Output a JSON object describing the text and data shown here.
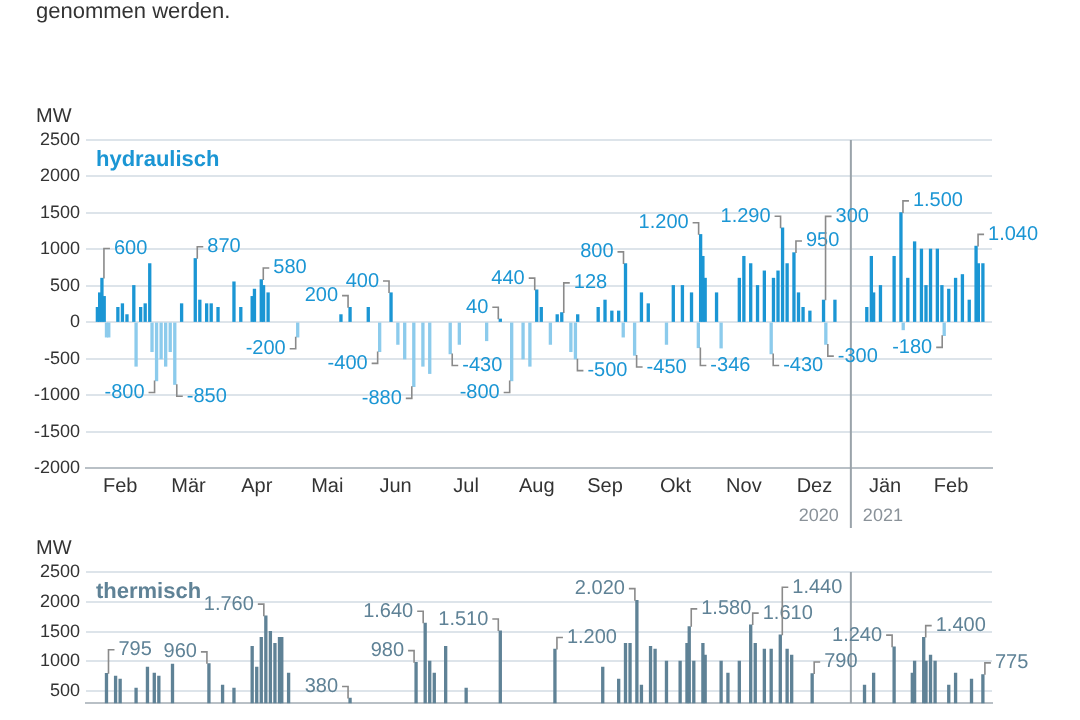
{
  "chart_data": [
    {
      "type": "bar",
      "title": "hydraulisch",
      "ylabel": "MW",
      "grid": "y",
      "annotations": [
        "genommen werden.",
        "2020",
        "2021"
      ],
      "xlim": [
        "2020-01-31",
        "2021-03-04"
      ],
      "xticks": [
        {
          "value": "2020-02-15",
          "label": "Feb"
        },
        {
          "value": "2020-03-16",
          "label": "Mär"
        },
        {
          "value": "2020-04-15",
          "label": "Apr"
        },
        {
          "value": "2020-05-16",
          "label": "Mai"
        },
        {
          "value": "2020-06-15",
          "label": "Jun"
        },
        {
          "value": "2020-07-16",
          "label": "Jul"
        },
        {
          "value": "2020-08-16",
          "label": "Aug"
        },
        {
          "value": "2020-09-15",
          "label": "Sep"
        },
        {
          "value": "2020-10-16",
          "label": "Okt"
        },
        {
          "value": "2020-11-15",
          "label": "Nov"
        },
        {
          "value": "2020-12-16",
          "label": "Dez"
        },
        {
          "value": "2021-01-16",
          "label": "Jän"
        },
        {
          "value": "2021-02-14",
          "label": "Feb"
        }
      ],
      "ylim": [
        -2000,
        2500
      ],
      "yticks": [
        -2000,
        -1500,
        -1000,
        -500,
        0,
        500,
        1000,
        1500,
        2000,
        2500
      ],
      "ref_lines": [
        {
          "axis": "x",
          "value": "2021-01-01",
          "color": "#9aa3aa"
        }
      ],
      "series": [
        {
          "color": "#1b96d4",
          "x": [
            "2020-02-05",
            "2020-02-06",
            "2020-02-07",
            "2020-02-08",
            "2020-02-14",
            "2020-02-16",
            "2020-02-18",
            "2020-02-21",
            "2020-02-24",
            "2020-02-26",
            "2020-02-28",
            "2020-03-13",
            "2020-03-19",
            "2020-03-21",
            "2020-03-24",
            "2020-03-26",
            "2020-03-29",
            "2020-04-05",
            "2020-04-08",
            "2020-04-13",
            "2020-04-14",
            "2020-04-17",
            "2020-04-18",
            "2020-04-20",
            "2020-05-22",
            "2020-05-26",
            "2020-06-03",
            "2020-06-13",
            "2020-07-31",
            "2020-08-16",
            "2020-08-18",
            "2020-08-25",
            "2020-08-27",
            "2020-09-03",
            "2020-09-12",
            "2020-09-15",
            "2020-09-18",
            "2020-09-21",
            "2020-09-24",
            "2020-10-01",
            "2020-10-04",
            "2020-10-15",
            "2020-10-19",
            "2020-10-23",
            "2020-10-27",
            "2020-10-28",
            "2020-10-29",
            "2020-11-03",
            "2020-11-13",
            "2020-11-15",
            "2020-11-18",
            "2020-11-21",
            "2020-11-24",
            "2020-11-28",
            "2020-11-30",
            "2020-12-02",
            "2020-12-04",
            "2020-12-07",
            "2020-12-09",
            "2020-12-11",
            "2020-12-14",
            "2020-12-20",
            "2020-12-25",
            "2021-01-08",
            "2021-01-10",
            "2021-01-11",
            "2021-01-14",
            "2021-01-20",
            "2021-01-23",
            "2021-01-26",
            "2021-01-29",
            "2021-02-01",
            "2021-02-03",
            "2021-02-05",
            "2021-02-08",
            "2021-02-10",
            "2021-02-13",
            "2021-02-16",
            "2021-02-19",
            "2021-02-22",
            "2021-02-25",
            "2021-02-26",
            "2021-02-28"
          ],
          "values": [
            200,
            400,
            600,
            350,
            200,
            250,
            100,
            500,
            200,
            250,
            800,
            250,
            870,
            300,
            250,
            250,
            200,
            550,
            200,
            350,
            450,
            580,
            500,
            400,
            100,
            200,
            200,
            400,
            40,
            440,
            200,
            100,
            128,
            100,
            200,
            300,
            150,
            150,
            800,
            400,
            250,
            500,
            500,
            400,
            1200,
            900,
            600,
            400,
            600,
            900,
            800,
            500,
            700,
            600,
            700,
            1290,
            800,
            950,
            400,
            200,
            150,
            300,
            300,
            200,
            900,
            400,
            500,
            900,
            1500,
            600,
            1100,
            1000,
            500,
            1000,
            1000,
            500,
            450,
            600,
            650,
            300,
            1040,
            800,
            800
          ],
          "value_labels": [
            null,
            null,
            "600",
            null,
            null,
            null,
            null,
            null,
            null,
            null,
            null,
            null,
            "870",
            null,
            null,
            null,
            null,
            null,
            null,
            null,
            null,
            "580",
            null,
            null,
            null,
            "200",
            null,
            "400",
            "40",
            "440",
            null,
            null,
            "128",
            null,
            null,
            null,
            null,
            null,
            "800",
            null,
            null,
            null,
            null,
            null,
            "1.200",
            null,
            null,
            null,
            null,
            null,
            null,
            null,
            null,
            null,
            null,
            "1.290",
            null,
            "950",
            null,
            null,
            null,
            "300",
            null,
            null,
            null,
            null,
            null,
            null,
            "1.500",
            null,
            null,
            null,
            null,
            null,
            null,
            null,
            null,
            null,
            null,
            null,
            "1.040",
            null,
            null
          ]
        },
        {
          "color": "#8ccbec",
          "x": [
            "2020-02-09",
            "2020-02-10",
            "2020-02-22",
            "2020-02-29",
            "2020-03-02",
            "2020-03-04",
            "2020-03-06",
            "2020-03-08",
            "2020-03-10",
            "2020-05-03",
            "2020-06-08",
            "2020-06-16",
            "2020-06-19",
            "2020-06-23",
            "2020-06-27",
            "2020-06-30",
            "2020-07-09",
            "2020-07-13",
            "2020-07-25",
            "2020-08-05",
            "2020-08-10",
            "2020-08-13",
            "2020-08-22",
            "2020-08-31",
            "2020-09-02",
            "2020-09-23",
            "2020-09-28",
            "2020-10-12",
            "2020-10-26",
            "2020-11-05",
            "2020-11-27",
            "2020-12-21",
            "2021-01-24",
            "2021-02-11"
          ],
          "values": [
            -200,
            -200,
            -600,
            -400,
            -800,
            -500,
            -600,
            -400,
            -850,
            -200,
            -400,
            -300,
            -500,
            -880,
            -600,
            -700,
            -430,
            -300,
            -250,
            -800,
            -500,
            -600,
            -300,
            -400,
            -500,
            -200,
            -450,
            -300,
            -346,
            -350,
            -430,
            -300,
            -100,
            -180
          ],
          "value_labels": [
            null,
            null,
            null,
            null,
            "-800",
            null,
            null,
            null,
            "-850",
            "-200",
            "-400",
            null,
            null,
            "-880",
            null,
            null,
            "-430",
            null,
            null,
            "-800",
            null,
            null,
            null,
            null,
            "-500",
            null,
            "-450",
            null,
            "-346",
            null,
            "-430",
            "-300",
            null,
            "-180"
          ]
        }
      ]
    },
    {
      "type": "bar",
      "title": "thermisch",
      "ylabel": "MW",
      "grid": "y",
      "tick_labels": "y",
      "xlim": [
        "2020-01-31",
        "2021-03-04"
      ],
      "ylim": [
        300,
        2500
      ],
      "yticks": [
        500,
        1000,
        1500,
        2000,
        2500
      ],
      "ref_lines": [
        {
          "axis": "x",
          "value": "2021-01-01",
          "color": "#9aa3aa"
        }
      ],
      "series": [
        {
          "color": "#5f8296",
          "x": [
            "2020-02-09",
            "2020-02-13",
            "2020-02-15",
            "2020-02-22",
            "2020-02-27",
            "2020-03-01",
            "2020-03-03",
            "2020-03-09",
            "2020-03-25",
            "2020-03-31",
            "2020-04-05",
            "2020-04-13",
            "2020-04-15",
            "2020-04-17",
            "2020-04-19",
            "2020-04-21",
            "2020-04-23",
            "2020-04-25",
            "2020-04-26",
            "2020-04-29",
            "2020-05-26",
            "2020-06-24",
            "2020-06-28",
            "2020-06-30",
            "2020-07-02",
            "2020-07-07",
            "2020-07-16",
            "2020-07-31",
            "2020-08-24",
            "2020-09-14",
            "2020-09-21",
            "2020-09-24",
            "2020-09-26",
            "2020-09-29",
            "2020-10-01",
            "2020-10-05",
            "2020-10-07",
            "2020-10-12",
            "2020-10-18",
            "2020-10-21",
            "2020-10-22",
            "2020-10-24",
            "2020-10-28",
            "2020-10-29",
            "2020-11-05",
            "2020-11-08",
            "2020-11-13",
            "2020-11-18",
            "2020-11-20",
            "2020-11-24",
            "2020-11-27",
            "2020-12-01",
            "2020-12-04",
            "2020-12-06",
            "2020-12-15",
            "2021-01-07",
            "2021-01-11",
            "2021-01-20",
            "2021-01-28",
            "2021-01-29",
            "2021-02-02",
            "2021-02-03",
            "2021-02-05",
            "2021-02-07",
            "2021-02-13",
            "2021-02-16",
            "2021-02-23",
            "2021-02-28"
          ],
          "values": [
            795,
            750,
            700,
            550,
            900,
            800,
            750,
            950,
            960,
            600,
            550,
            1250,
            900,
            1400,
            1760,
            1500,
            1300,
            1400,
            1400,
            800,
            380,
            980,
            1640,
            1000,
            800,
            1250,
            550,
            1510,
            1200,
            900,
            700,
            1300,
            1300,
            2020,
            600,
            1250,
            1200,
            1000,
            1000,
            1300,
            1580,
            1000,
            1300,
            1100,
            1000,
            800,
            1000,
            1610,
            1300,
            1200,
            1200,
            1440,
            1200,
            1100,
            790,
            600,
            800,
            1240,
            800,
            1000,
            1400,
            1000,
            1100,
            1000,
            600,
            800,
            700,
            775
          ],
          "value_labels": [
            "795",
            null,
            null,
            null,
            null,
            null,
            null,
            null,
            "960",
            null,
            null,
            null,
            null,
            null,
            "1.760",
            null,
            null,
            null,
            null,
            null,
            "380",
            "980",
            "1.640",
            null,
            null,
            null,
            null,
            "1.510",
            "1.200",
            null,
            null,
            null,
            null,
            "2.020",
            null,
            null,
            null,
            null,
            null,
            null,
            "1.580",
            null,
            null,
            null,
            null,
            null,
            null,
            "1.610",
            null,
            null,
            null,
            "1.440",
            null,
            null,
            "790",
            null,
            null,
            "1.240",
            null,
            null,
            "1.400",
            null,
            null,
            null,
            null,
            null,
            null,
            "775"
          ]
        }
      ]
    }
  ]
}
